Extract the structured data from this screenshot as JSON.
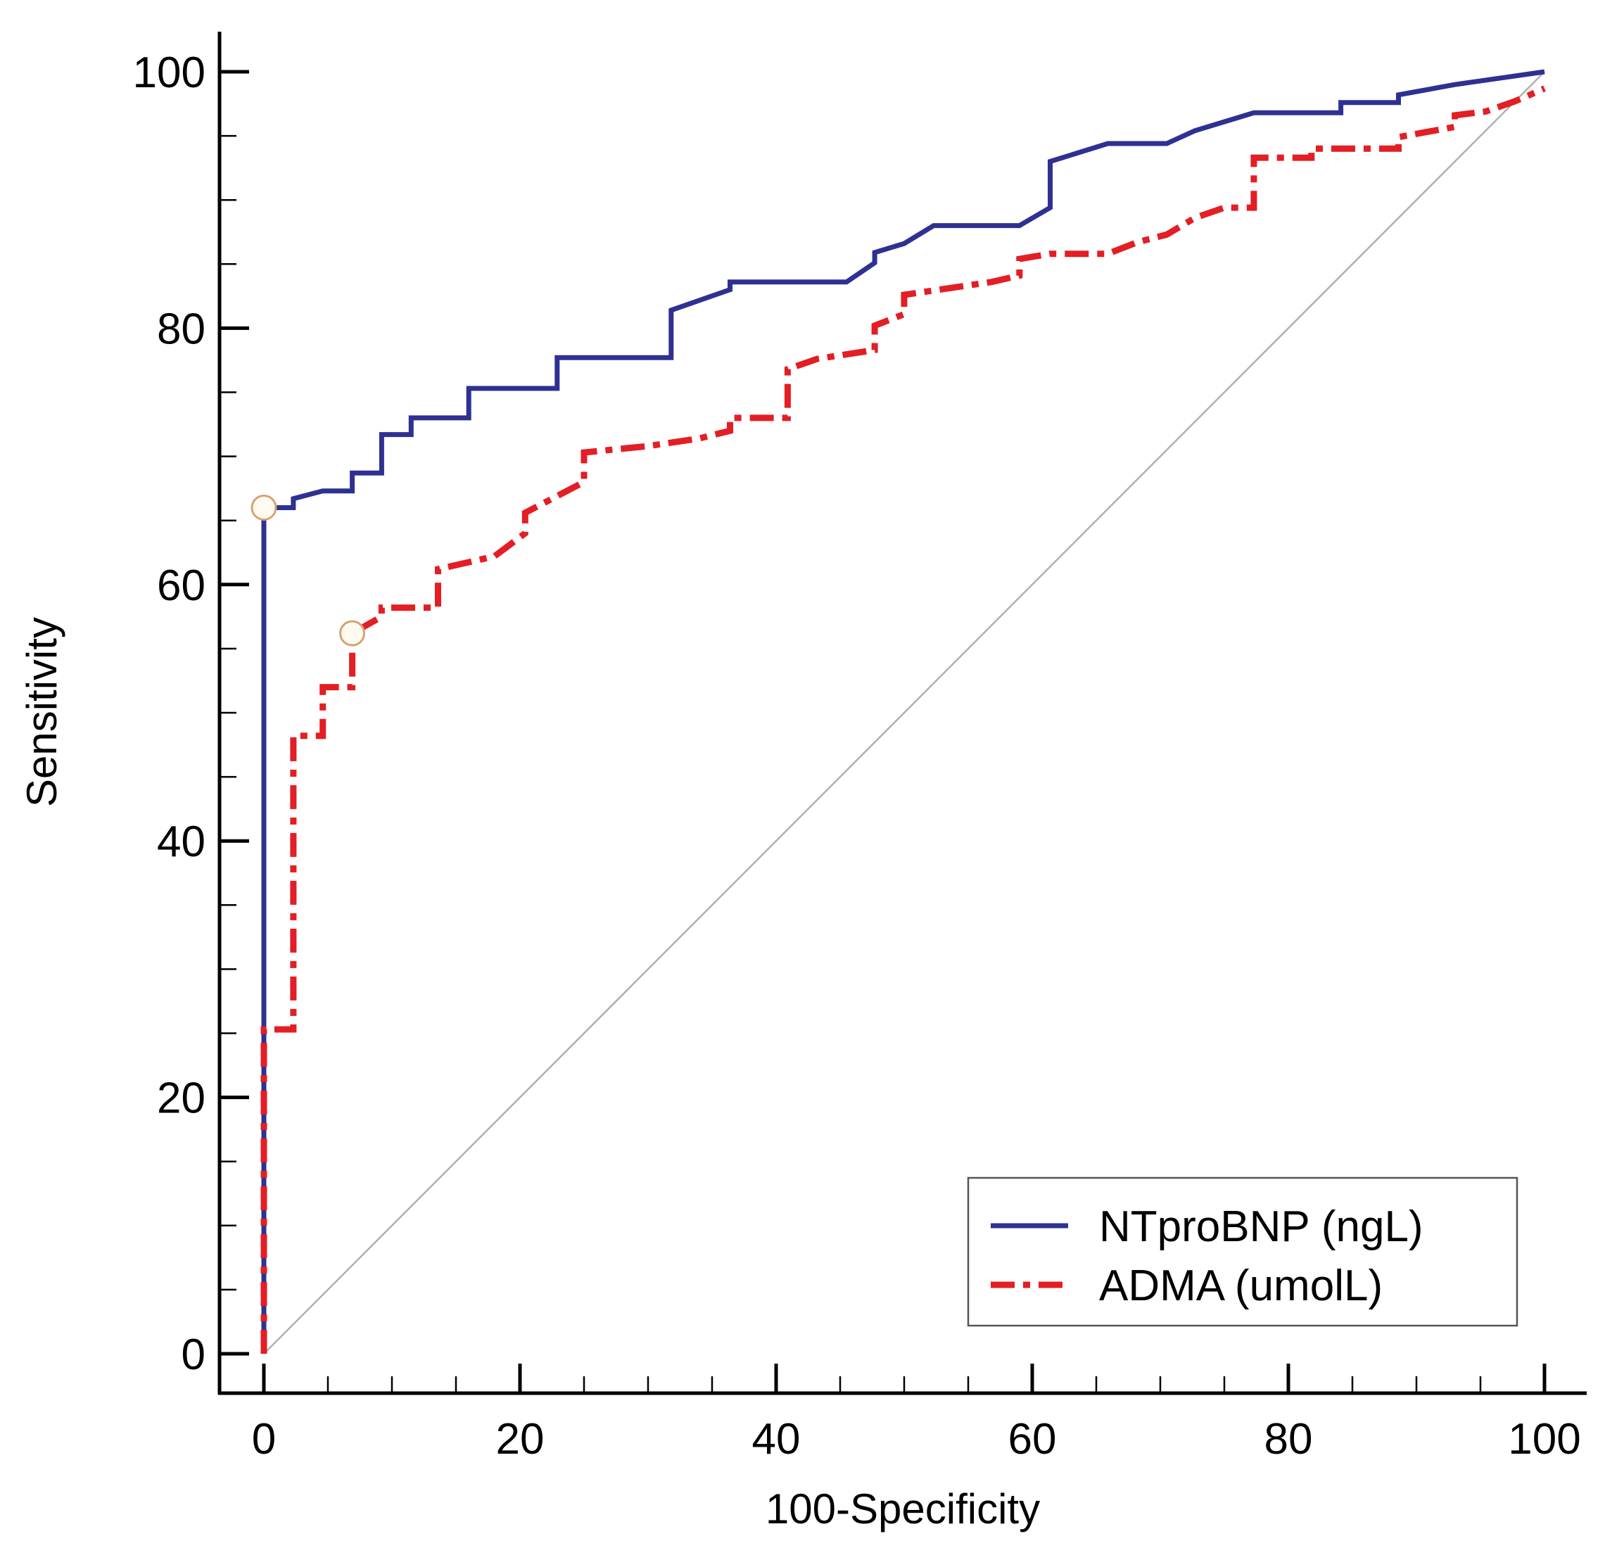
{
  "chart_data": {
    "type": "line",
    "title": "",
    "xlabel": "100-Specificity",
    "ylabel": "Sensitivity",
    "xlim": [
      0,
      100
    ],
    "ylim": [
      0,
      100
    ],
    "x_ticks": [
      0,
      20,
      40,
      60,
      80,
      100
    ],
    "y_ticks": [
      0,
      20,
      40,
      60,
      80,
      100
    ],
    "x_tick_labels": [
      "0",
      "20",
      "40",
      "60",
      "80",
      "100"
    ],
    "y_tick_labels": [
      "0",
      "20",
      "40",
      "60",
      "80",
      "100"
    ],
    "minor_tick_step": 5,
    "grid": false,
    "legend_position": "bottom-right",
    "reference_line": {
      "x": [
        0,
        100
      ],
      "y": [
        0,
        100
      ],
      "color": "#b0b0b0"
    },
    "series": [
      {
        "name": "NTproBNP (ngL)",
        "color": "#2e3192",
        "style": "solid",
        "x": [
          0,
          0,
          0,
          0,
          2.3,
          2.3,
          4.6,
          6.9,
          6.9,
          9.2,
          9.2,
          11.5,
          11.5,
          16,
          16,
          22.9,
          22.9,
          31.8,
          31.8,
          36.4,
          36.4,
          45.5,
          47.7,
          47.7,
          50,
          52.3,
          59,
          61.4,
          61.4,
          65.9,
          70.5,
          72.7,
          77.3,
          84.1,
          84.1,
          88.6,
          88.6,
          93,
          100
        ],
        "y": [
          0,
          26,
          60,
          66,
          66,
          66.7,
          67.3,
          67.3,
          68.7,
          68.7,
          71.7,
          71.7,
          73,
          73,
          75.3,
          75.3,
          77.7,
          77.7,
          81.4,
          83,
          83.6,
          83.6,
          85.1,
          85.9,
          86.6,
          88,
          88,
          89.4,
          93,
          94.4,
          94.4,
          95.4,
          96.8,
          96.8,
          97.6,
          97.6,
          98.2,
          99,
          100
        ]
      },
      {
        "name": "ADMA (umolL)",
        "color": "#e31e24",
        "style": "dashdot",
        "x": [
          0,
          0,
          2.3,
          2.3,
          4.6,
          4.6,
          6.9,
          6.9,
          9.2,
          9.2,
          13.6,
          13.6,
          18,
          20.4,
          20.4,
          25,
          25,
          30,
          34,
          36.4,
          36.4,
          40.9,
          40.9,
          43.2,
          47.7,
          47.7,
          50,
          50,
          56.8,
          59,
          59,
          61.4,
          65.9,
          68.2,
          70.5,
          72.7,
          75,
          77.3,
          77.3,
          81.8,
          81.8,
          88.6,
          88.6,
          93,
          93,
          95.4,
          97.7,
          100
        ],
        "y": [
          0,
          25.3,
          25.3,
          48.2,
          48.2,
          52,
          52,
          56.2,
          57.5,
          58.2,
          58.2,
          61.2,
          62.2,
          64,
          65.6,
          68,
          70.3,
          70.8,
          71.4,
          72,
          73,
          73,
          76.8,
          77.6,
          78.3,
          80.2,
          81.1,
          82.6,
          83.6,
          84.1,
          85.4,
          85.8,
          85.8,
          86.7,
          87.3,
          88.6,
          89.4,
          89.4,
          93.3,
          93.3,
          94,
          94,
          94.9,
          95.7,
          96.6,
          96.9,
          97.7,
          98.7
        ]
      }
    ],
    "highlight_points": [
      {
        "series": "NTproBNP (ngL)",
        "x": 0,
        "y": 66
      },
      {
        "series": "ADMA (umolL)",
        "x": 6.9,
        "y": 56.2
      }
    ]
  }
}
